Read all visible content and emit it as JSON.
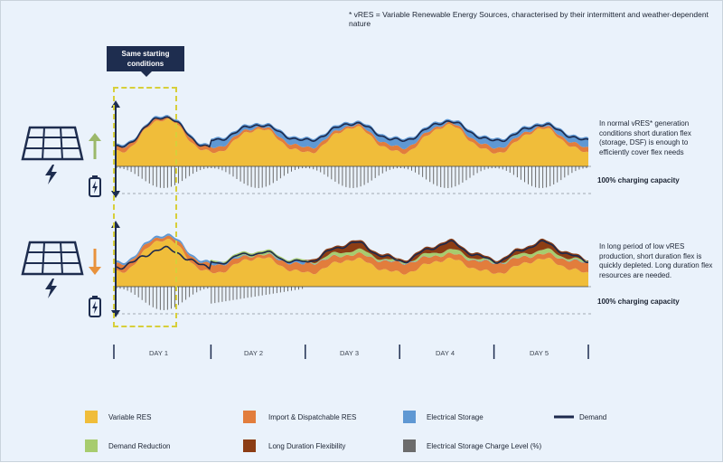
{
  "footnote": "*  vRES = Variable Renewable Energy Sources, characterised by their intermittent and weather-dependent nature",
  "callout": "Same starting conditions",
  "upper_note": "In normal vRES* generation conditions short duration flex (storage, DSF) is enough to efficiently cover flex needs",
  "lower_note": "In long period of low vRES production, short duration flex is quickly depleted. Long duration flex resources are needed.",
  "capacity_label_upper": "100% charging capacity",
  "capacity_label_lower": "100% charging capacity",
  "days": [
    "DAY 1",
    "DAY 2",
    "DAY 3",
    "DAY 4",
    "DAY 5"
  ],
  "legend": [
    {
      "label": "Variable RES",
      "color": "#f0bd3a"
    },
    {
      "label": "Import & Dispatchable RES",
      "color": "#e27d3c"
    },
    {
      "label": "Electrical Storage",
      "color": "#5f98d3"
    },
    {
      "label": "Demand",
      "color": "#1d2a4d"
    },
    {
      "label": "Demand Reduction",
      "color": "#a7cc6e"
    },
    {
      "label": "Long Duration Flexibility",
      "color": "#8c3d14"
    },
    {
      "label": "Electrical Storage Charge Level (%)",
      "color": "#6c6c6c"
    }
  ],
  "chart_data": {
    "type": "area",
    "title": "",
    "x": "hours over 5 days",
    "days": 5,
    "scenarios": [
      {
        "name": "Normal vRES generation",
        "vres_daily_peaks": [
          1.0,
          0.7,
          0.75,
          0.8,
          0.7
        ],
        "storage_depleted": false
      },
      {
        "name": "Long period of low vRES",
        "vres_daily_peaks": [
          1.0,
          0.45,
          0.4,
          0.4,
          0.4
        ],
        "storage_depleted": true
      }
    ]
  }
}
